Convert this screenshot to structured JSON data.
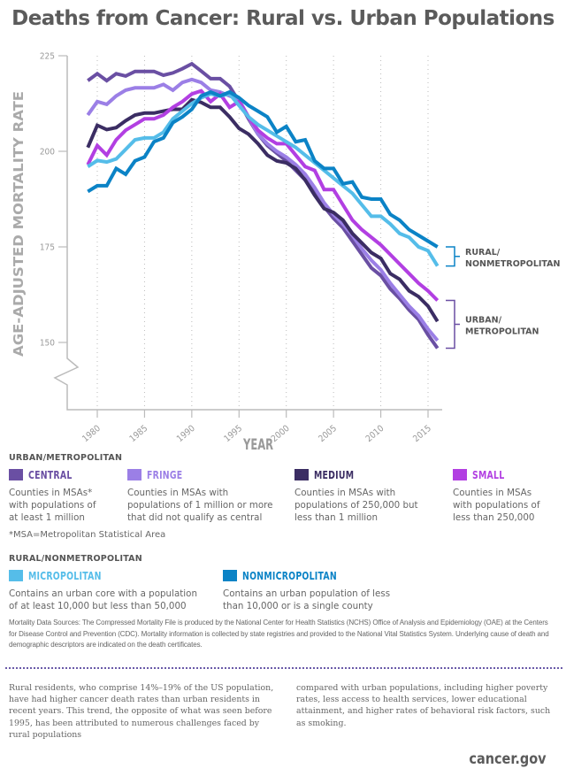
{
  "title": "Deaths from Cancer: Rural vs. Urban Populations",
  "chart_data": {
    "type": "line",
    "title": "Deaths from Cancer: Rural vs. Urban Populations",
    "xlabel": "YEAR",
    "ylabel": "AGE-ADJUSTED MORTALITY RATE",
    "xlim": [
      1979,
      2016
    ],
    "ylim": [
      150,
      225
    ],
    "y_axis_break": true,
    "yticks": [
      150,
      175,
      200,
      225
    ],
    "xticks": [
      1980,
      1985,
      1990,
      1995,
      2000,
      2005,
      2010,
      2015
    ],
    "grid": "vertical dotted",
    "x": [
      1979,
      1980,
      1981,
      1982,
      1983,
      1984,
      1985,
      1986,
      1987,
      1988,
      1989,
      1990,
      1991,
      1992,
      1993,
      1994,
      1995,
      1996,
      1997,
      1998,
      1999,
      2000,
      2001,
      2002,
      2003,
      2004,
      2005,
      2006,
      2007,
      2008,
      2009,
      2010,
      2011,
      2012,
      2013,
      2014,
      2015,
      2016
    ],
    "series": [
      {
        "name": "Central",
        "group": "Urban/Metropolitan",
        "color": "#6a4fa3",
        "values": [
          218.5,
          220.3,
          218.5,
          220.3,
          219.7,
          220.9,
          220.9,
          220.9,
          219.9,
          220.5,
          221.6,
          222.9,
          221.0,
          219.0,
          219.0,
          217.0,
          213.0,
          208.5,
          204.5,
          201.5,
          199.5,
          197.5,
          195.0,
          192.5,
          189.0,
          185.5,
          182.5,
          180.0,
          176.5,
          173.0,
          169.5,
          167.5,
          164.0,
          161.5,
          158.5,
          156.0,
          152.0,
          148.5
        ]
      },
      {
        "name": "Fringe",
        "group": "Urban/Metropolitan",
        "color": "#9b7fe6",
        "values": [
          209.5,
          213.0,
          212.3,
          214.5,
          216.0,
          216.6,
          216.6,
          216.6,
          217.5,
          216.0,
          218.0,
          218.8,
          218.0,
          216.0,
          215.5,
          214.5,
          213.5,
          209.0,
          204.5,
          202.0,
          200.0,
          198.5,
          196.5,
          194.0,
          190.5,
          186.5,
          183.5,
          181.0,
          178.0,
          174.5,
          171.5,
          169.0,
          165.5,
          162.5,
          159.5,
          157.0,
          153.5,
          150.5
        ]
      },
      {
        "name": "Medium",
        "group": "Urban/Metropolitan",
        "color": "#3b2d63",
        "values": [
          201.0,
          206.8,
          205.7,
          206.2,
          208.0,
          209.5,
          210.0,
          210.0,
          210.5,
          211.0,
          211.0,
          213.5,
          212.8,
          211.5,
          211.5,
          209.0,
          206.0,
          204.5,
          202.0,
          199.0,
          197.5,
          197.0,
          195.5,
          192.5,
          188.5,
          185.0,
          184.0,
          182.0,
          178.5,
          176.0,
          173.5,
          172.0,
          168.0,
          166.5,
          163.5,
          162.0,
          159.5,
          155.5
        ]
      },
      {
        "name": "Small",
        "group": "Urban/Metropolitan",
        "color": "#b23fe2",
        "values": [
          196.5,
          201.5,
          199.0,
          203.0,
          205.5,
          207.0,
          208.5,
          208.5,
          209.5,
          211.5,
          213.0,
          215.0,
          215.8,
          213.0,
          215.0,
          211.5,
          213.0,
          209.0,
          205.5,
          203.5,
          202.0,
          202.0,
          199.0,
          196.0,
          195.0,
          190.0,
          190.0,
          186.0,
          182.0,
          179.5,
          177.5,
          175.5,
          173.0,
          170.5,
          168.0,
          165.5,
          163.5,
          161.0
        ]
      },
      {
        "name": "Micropolitan",
        "group": "Rural/Nonmetropolitan",
        "color": "#55bde9",
        "values": [
          196.0,
          197.6,
          197.2,
          198.0,
          200.5,
          203.0,
          203.5,
          203.5,
          205.0,
          208.5,
          210.5,
          212.5,
          214.0,
          215.0,
          214.5,
          215.0,
          212.0,
          209.0,
          207.0,
          205.5,
          204.0,
          202.5,
          201.0,
          199.0,
          197.0,
          195.0,
          193.0,
          191.0,
          189.0,
          186.0,
          183.0,
          183.0,
          181.0,
          178.5,
          177.5,
          175.0,
          174.0,
          170.0
        ]
      },
      {
        "name": "Nonmicropolitan",
        "group": "Rural/Nonmetropolitan",
        "color": "#0b83c6",
        "values": [
          189.5,
          191.0,
          191.0,
          195.5,
          194.0,
          197.5,
          198.5,
          202.5,
          203.5,
          207.5,
          209.0,
          211.0,
          214.5,
          215.5,
          214.5,
          215.5,
          214.0,
          212.0,
          210.5,
          209.0,
          205.0,
          206.5,
          202.5,
          203.0,
          197.5,
          195.5,
          195.5,
          191.5,
          192.0,
          188.0,
          187.5,
          187.5,
          183.5,
          182.0,
          179.5,
          178.0,
          176.5,
          175.0
        ]
      }
    ],
    "annotations": [
      {
        "text": "RURAL/ NONMETROPOLITAN",
        "line1": "RURAL/",
        "line2": "NONMETROPOLITAN",
        "color": "#0b83c6",
        "bracket_range": [
          170.0,
          175.0
        ]
      },
      {
        "text": "URBAN/ METROPOLITAN",
        "line1": "URBAN/",
        "line2": "METROPOLITAN",
        "color": "#6a4fa3",
        "bracket_range": [
          148.5,
          161.0
        ]
      }
    ]
  },
  "legend": {
    "urban_heading": "URBAN/METROPOLITAN",
    "rural_heading": "RURAL/NONMETROPOLITAN",
    "items": [
      {
        "name": "CENTRAL",
        "color": "#6a4fa3",
        "desc": [
          "Counties in MSAs*",
          "with populations of",
          "at least 1 million"
        ]
      },
      {
        "name": "FRINGE",
        "color": "#9b7fe6",
        "desc": [
          "Counties in MSAs with",
          "populations of 1 million or more",
          "that did not qualify as central"
        ]
      },
      {
        "name": "MEDIUM",
        "color": "#3b2d63",
        "desc": [
          "Counties in MSAs with",
          "populations of 250,000 but",
          "less than 1 million"
        ]
      },
      {
        "name": "SMALL",
        "color": "#b23fe2",
        "desc": [
          "Counties in MSAs",
          "with populations of",
          "less than 250,000"
        ]
      },
      {
        "name": "MICROPOLITAN",
        "color": "#55bde9",
        "desc": [
          "Contains an urban core with a population",
          "of at least 10,000 but less than 50,000"
        ]
      },
      {
        "name": "NONMICROPOLITAN",
        "color": "#0b83c6",
        "desc": [
          "Contains an urban population of less",
          "than 10,000 or is a single county"
        ]
      }
    ],
    "msa_note": "*MSA=Metropolitan Statistical Area"
  },
  "sources": "Mortality Data Sources: The Compressed Mortality File is produced by the National Center for Health Statistics (NCHS) Office of Analysis and Epidemiology (OAE) at the Centers for Disease Control and Prevention (CDC). Mortality information is collected by state registries and provided to the National Vital Statistics System. Underlying cause of death and demographic descriptors are indicated on the death certificates.",
  "body": {
    "col1": "Rural residents, who comprise 14%–19% of the US population, have had higher cancer death rates than urban residents in recent years. This trend, the opposite of what was seen before 1995, has been attributed to numerous challenges faced by rural populations",
    "col2": "compared with urban populations, including higher poverty rates, less access to health services, lower educational attainment, and higher rates of behavioral risk factors, such as smoking."
  },
  "brand": "cancer.gov"
}
